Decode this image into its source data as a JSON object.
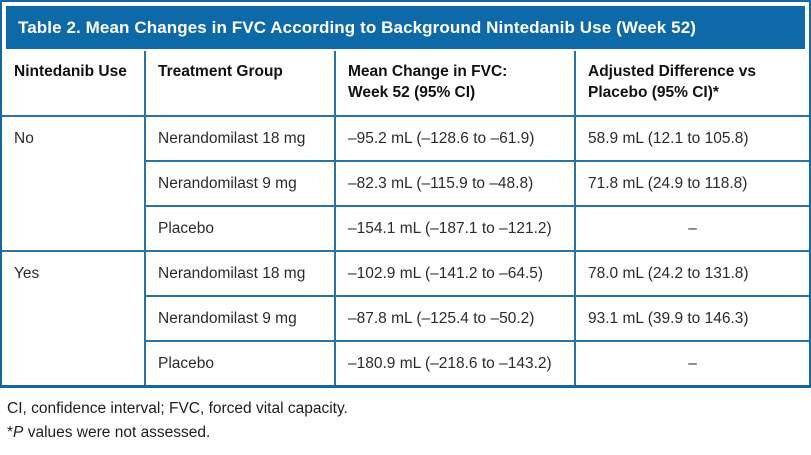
{
  "title": "Table 2. Mean Changes in FVC According to Background Nintedanib Use (Week 52)",
  "colors": {
    "accent_blue": "#0d69a8",
    "gridline_blue": "#2b72a5"
  },
  "table": {
    "headers": [
      {
        "line1": "Nintedanib Use",
        "line2": ""
      },
      {
        "line1": "Treatment Group",
        "line2": ""
      },
      {
        "line1": "Mean Change in FVC:",
        "line2": "Week 52 (95% CI)"
      },
      {
        "line1": "Adjusted Difference vs",
        "line2": "Placebo (95% CI)*"
      }
    ],
    "groups": [
      {
        "label": "No",
        "rows": [
          {
            "treatment": "Nerandomilast 18 mg",
            "mean_change": "–95.2 mL (–128.6 to –61.9)",
            "adj_diff": "58.9 mL (12.1 to 105.8)"
          },
          {
            "treatment": "Nerandomilast 9 mg",
            "mean_change": "–82.3 mL (–115.9 to –48.8)",
            "adj_diff": "71.8 mL (24.9 to 118.8)"
          },
          {
            "treatment": "Placebo",
            "mean_change": "–154.1 mL (–187.1 to –121.2)",
            "adj_diff": "–"
          }
        ]
      },
      {
        "label": "Yes",
        "rows": [
          {
            "treatment": "Nerandomilast 18 mg",
            "mean_change": "–102.9 mL (–141.2 to –64.5)",
            "adj_diff": "78.0 mL (24.2 to 131.8)"
          },
          {
            "treatment": "Nerandomilast 9 mg",
            "mean_change": "–87.8 mL (–125.4 to –50.2)",
            "adj_diff": "93.1 mL (39.9 to 146.3)"
          },
          {
            "treatment": "Placebo",
            "mean_change": "–180.9 mL (–218.6 to –143.2)",
            "adj_diff": "–"
          }
        ]
      }
    ]
  },
  "footnotes": {
    "abbreviations": "CI, confidence interval; FVC, forced vital capacity.",
    "note_star": "*",
    "note_italic": "P",
    "note_rest": " values were not assessed."
  }
}
